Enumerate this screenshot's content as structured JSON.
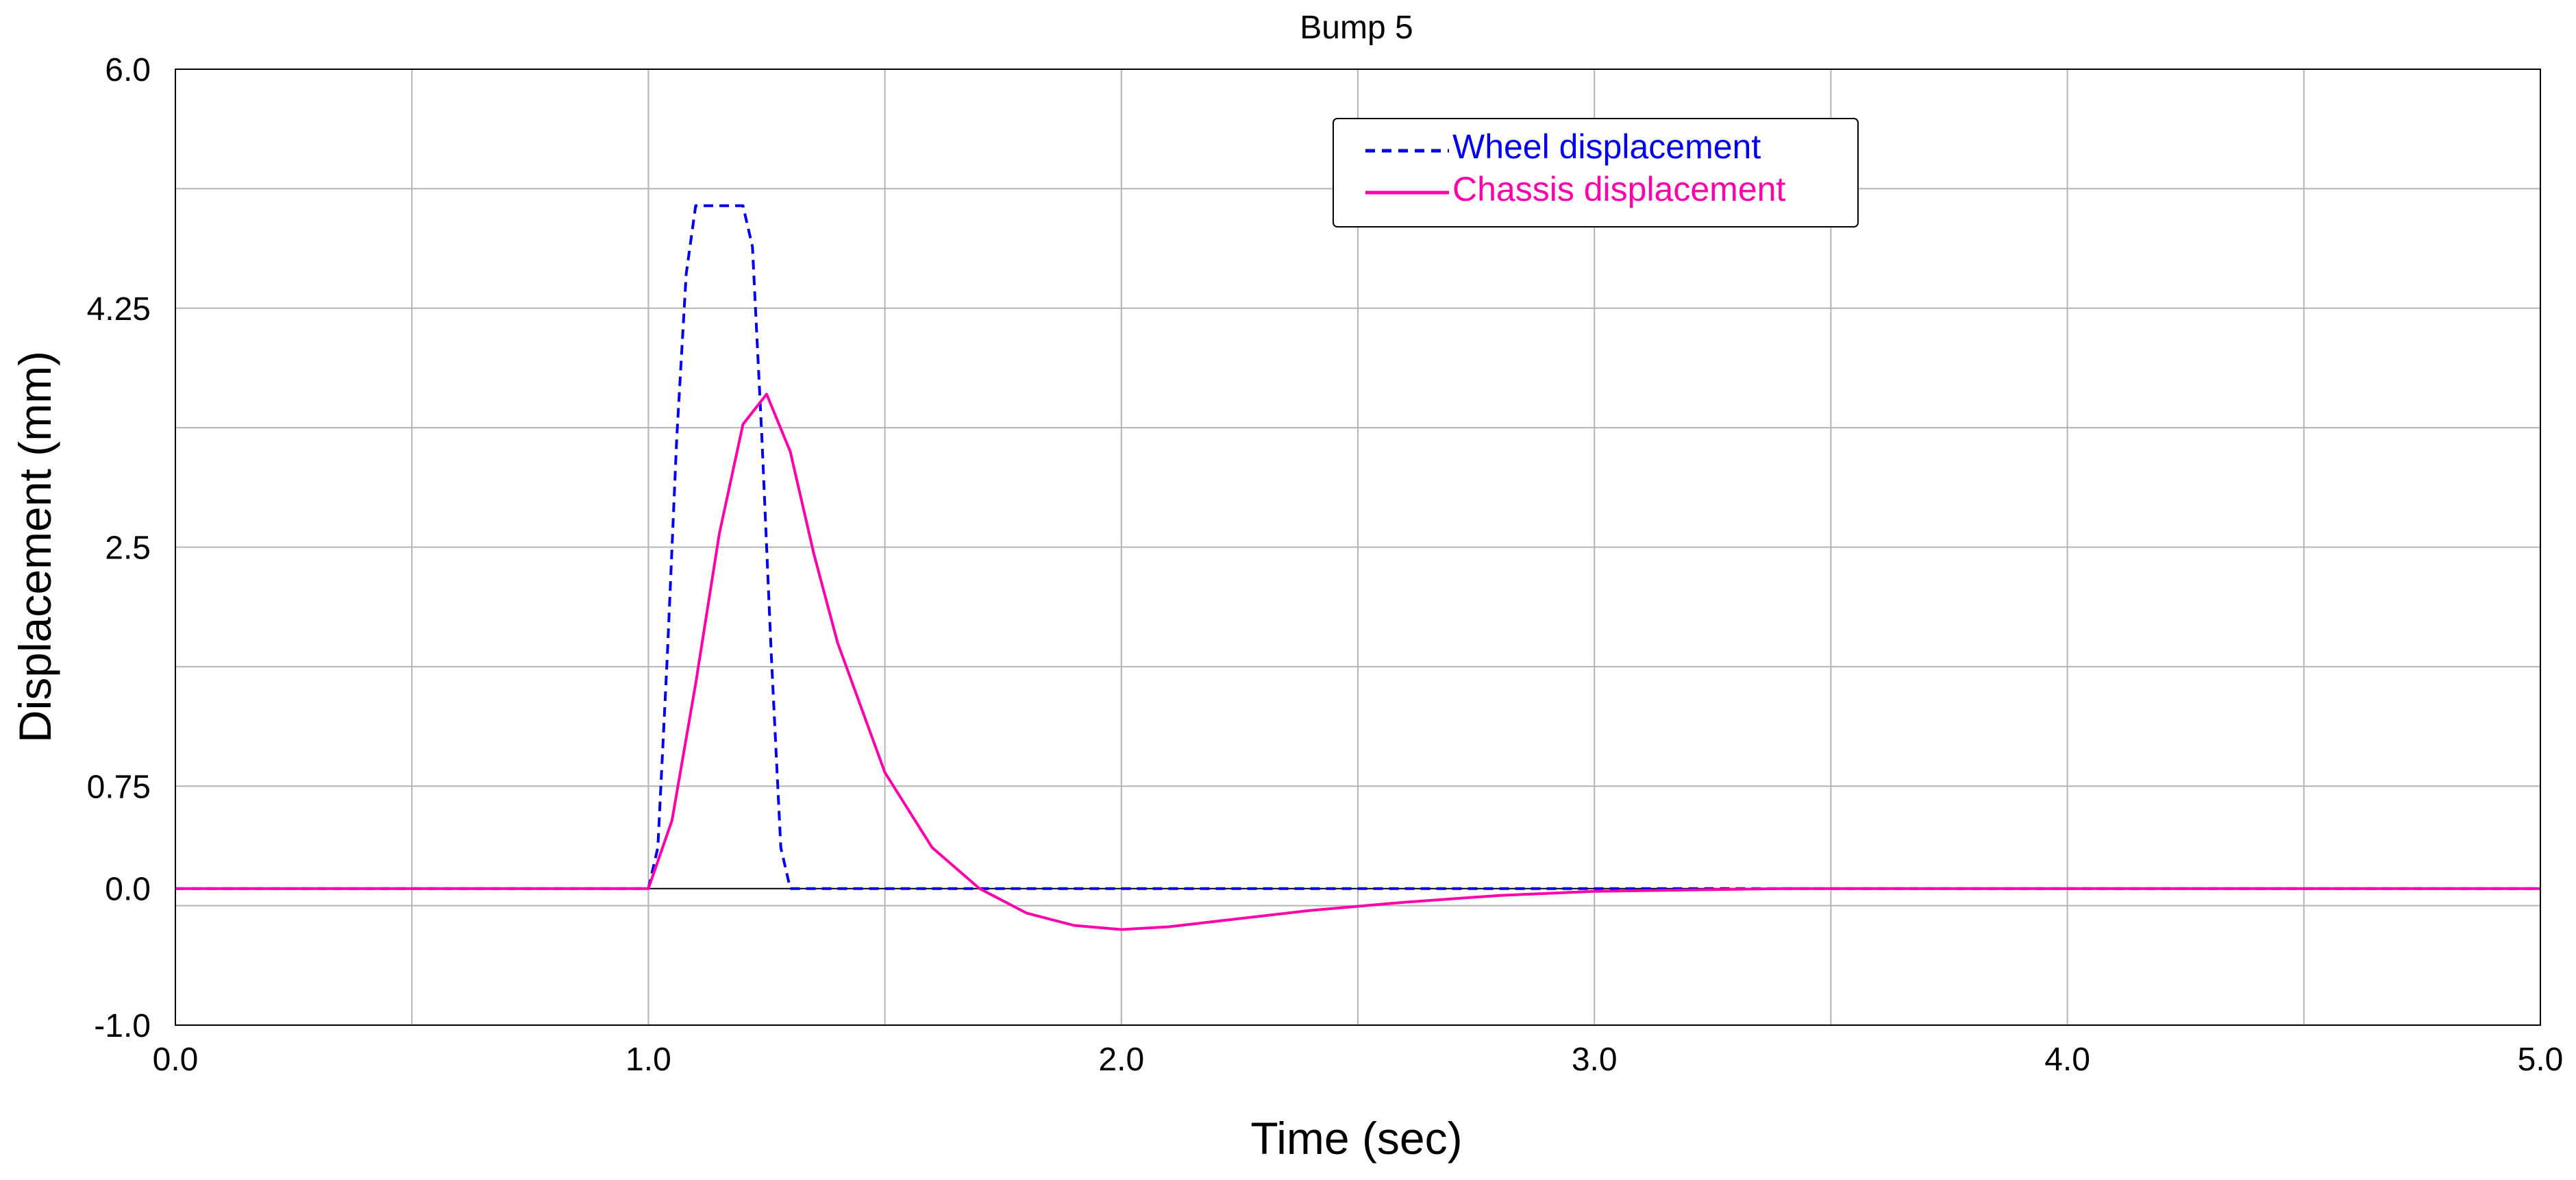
{
  "chart_data": {
    "type": "line",
    "title": "Bump 5",
    "xlabel": "Time (sec)",
    "ylabel": "Displacement (mm)",
    "xlim": [
      0.0,
      5.0
    ],
    "ylim": [
      -1.0,
      6.0
    ],
    "x_ticks": [
      "0.0",
      "1.0",
      "2.0",
      "3.0",
      "4.0",
      "5.0"
    ],
    "y_ticks": [
      {
        "value": -1.0,
        "label": "-1.0"
      },
      {
        "value": 0.0,
        "label": "0.0"
      },
      {
        "value": 0.75,
        "label": "0.75"
      },
      {
        "value": 2.5,
        "label": "2.5"
      },
      {
        "value": 4.25,
        "label": "4.25"
      },
      {
        "value": 6.0,
        "label": "6.0"
      }
    ],
    "x_gridlines": [
      0.5,
      1.0,
      1.5,
      2.0,
      2.5,
      3.0,
      3.5,
      4.0,
      4.5
    ],
    "y_gridlines": [
      -0.125,
      0.75,
      1.625,
      2.5,
      3.375,
      4.25,
      5.125
    ],
    "grid": true,
    "legend_position": "top-right",
    "series": [
      {
        "name": "Wheel displacement",
        "color": "#0000ee",
        "style": "dashed",
        "x": [
          0.0,
          1.0,
          1.02,
          1.04,
          1.06,
          1.08,
          1.1,
          1.15,
          1.2,
          1.22,
          1.24,
          1.26,
          1.28,
          1.3,
          5.0
        ],
        "y": [
          0.0,
          0.0,
          0.3,
          1.7,
          3.3,
          4.5,
          5.0,
          5.0,
          5.0,
          4.7,
          3.3,
          1.7,
          0.3,
          0.0,
          0.0
        ]
      },
      {
        "name": "Chassis displacement",
        "color": "#ff00aa",
        "style": "solid",
        "x": [
          0.0,
          1.0,
          1.05,
          1.1,
          1.15,
          1.2,
          1.25,
          1.3,
          1.35,
          1.4,
          1.5,
          1.6,
          1.7,
          1.8,
          1.9,
          2.0,
          2.1,
          2.2,
          2.4,
          2.6,
          2.8,
          3.0,
          3.2,
          3.4,
          3.6,
          4.0,
          5.0
        ],
        "y": [
          0.0,
          0.0,
          0.5,
          1.5,
          2.6,
          3.4,
          3.62,
          3.2,
          2.45,
          1.8,
          0.85,
          0.3,
          0.0,
          -0.18,
          -0.27,
          -0.3,
          -0.28,
          -0.24,
          -0.16,
          -0.1,
          -0.05,
          -0.02,
          -0.01,
          0.0,
          0.0,
          0.0,
          0.0
        ]
      }
    ]
  }
}
